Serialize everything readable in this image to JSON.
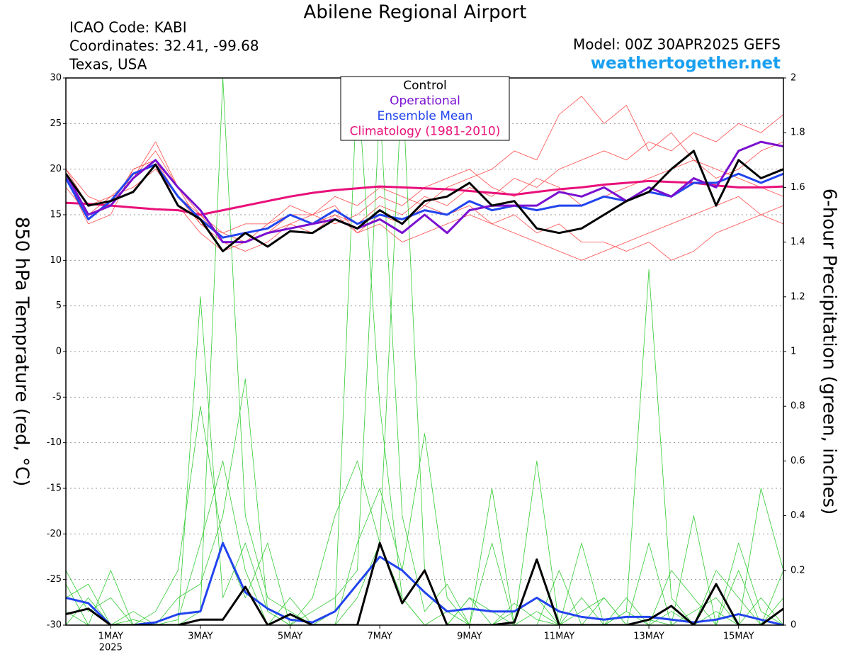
{
  "chart_data": {
    "type": "line",
    "title": "Abilene Regional Airport",
    "info": [
      "ICAO Code: KABI",
      "Coordinates: 32.41, -99.68",
      "Texas, USA"
    ],
    "model": "Model: 00Z 30APR2025 GEFS",
    "source": "weathertogether.net",
    "ylabel": "850 hPa Temprature (red, °C)",
    "y2label": "6-hour Precipitation (green, inches)",
    "x_sublabel": "2025",
    "xlim": [
      0,
      16
    ],
    "xticks": [
      {
        "value": 1,
        "label": "1MAY"
      },
      {
        "value": 3,
        "label": "3MAY"
      },
      {
        "value": 5,
        "label": "5MAY"
      },
      {
        "value": 7,
        "label": "7MAY"
      },
      {
        "value": 9,
        "label": "9MAY"
      },
      {
        "value": 11,
        "label": "11MAY"
      },
      {
        "value": 13,
        "label": "13MAY"
      },
      {
        "value": 15,
        "label": "15MAY"
      }
    ],
    "ylim": [
      -30,
      30
    ],
    "yticks": [
      -30,
      -25,
      -20,
      -15,
      -10,
      -5,
      0,
      5,
      10,
      15,
      20,
      25,
      30
    ],
    "y2lim": [
      0,
      2
    ],
    "y2ticks": [
      0,
      0.2,
      0.4,
      0.6,
      0.8,
      1,
      1.2,
      1.4,
      1.6,
      1.8,
      2
    ],
    "grid": true,
    "x": [
      0,
      0.5,
      1,
      1.5,
      2,
      2.5,
      3,
      3.5,
      4,
      4.5,
      5,
      5.5,
      6,
      6.5,
      7,
      7.5,
      8,
      8.5,
      9,
      9.5,
      10,
      10.5,
      11,
      11.5,
      12,
      12.5,
      13,
      13.5,
      14,
      14.5,
      15,
      15.5,
      16
    ],
    "series": [
      {
        "color": "#ff4a4a",
        "values": [
          20,
          16,
          17,
          19,
          22,
          18,
          14,
          12,
          11,
          12,
          14,
          13,
          15,
          14,
          16,
          15,
          17,
          16,
          18,
          17,
          19,
          18,
          20,
          21,
          22,
          21,
          23,
          22,
          24,
          23,
          25,
          24,
          26
        ]
      },
      {
        "color": "#ff4a4a",
        "values": [
          19,
          15,
          16,
          20,
          21,
          16,
          13,
          11,
          12,
          13,
          14,
          15,
          16,
          13,
          14,
          12,
          13,
          14,
          15,
          14,
          13,
          12,
          11,
          10,
          11,
          12,
          13,
          14,
          15,
          16,
          17,
          15,
          16
        ]
      },
      {
        "color": "#ff4a4a",
        "values": [
          18,
          15,
          17,
          18,
          20,
          17,
          15,
          13,
          14,
          14,
          16,
          15,
          14,
          15,
          17,
          16,
          18,
          19,
          20,
          18,
          17,
          19,
          18,
          16,
          17,
          18,
          19,
          20,
          21,
          19,
          20,
          22,
          23
        ]
      },
      {
        "color": "#ff4a4a",
        "values": [
          20,
          17,
          16,
          19,
          23,
          18,
          15,
          12,
          12,
          14,
          15,
          14,
          15,
          13,
          15,
          14,
          16,
          15,
          16,
          14,
          15,
          13,
          14,
          12,
          12,
          11,
          12,
          10,
          11,
          13,
          14,
          15,
          14
        ]
      },
      {
        "color": "#ff4a4a",
        "values": [
          19,
          14,
          15,
          20,
          21,
          17,
          14,
          13,
          12,
          13,
          15,
          15,
          17,
          16,
          18,
          17,
          16,
          18,
          19,
          20,
          22,
          21,
          26,
          28,
          25,
          27,
          22,
          24,
          21,
          20,
          19,
          18,
          17
        ]
      },
      {
        "color": "#33cc33",
        "axis": "y2",
        "values": [
          0.2,
          0.05,
          0.1,
          0,
          0,
          0,
          0.05,
          2.0,
          0.4,
          0.1,
          0.05,
          0,
          0,
          0.1,
          0.3,
          0.1,
          0,
          0.05,
          0,
          0,
          0.08,
          0.02,
          0,
          0.05,
          0.1,
          0,
          0.3,
          0,
          0.05,
          0.1,
          0,
          0.5,
          0.2
        ]
      },
      {
        "color": "#33cc33",
        "axis": "y2",
        "values": [
          0.1,
          0.15,
          0,
          0.05,
          0,
          0.02,
          0.3,
          0.6,
          0.2,
          0,
          0.1,
          0,
          0.05,
          2.0,
          0.8,
          0.1,
          0,
          0,
          0.1,
          0.05,
          0,
          0,
          0.2,
          0,
          0,
          0.05,
          1.3,
          0.1,
          0,
          0.05,
          0,
          0.1,
          0
        ]
      },
      {
        "color": "#33cc33",
        "axis": "y2",
        "values": [
          0.05,
          0,
          0.2,
          0,
          0,
          0.1,
          0.15,
          0.4,
          0.9,
          0.05,
          0,
          0.05,
          0.1,
          0.2,
          1.9,
          0.4,
          0.05,
          0.15,
          0,
          0.3,
          0,
          0.6,
          0,
          0,
          0.1,
          0,
          0.02,
          0,
          0.4,
          0,
          0.2,
          0,
          0.1
        ]
      },
      {
        "color": "#33cc33",
        "axis": "y2",
        "values": [
          0,
          0.1,
          0,
          0,
          0.05,
          0.2,
          0.8,
          0.3,
          0.1,
          0.3,
          0,
          0.1,
          0.4,
          0.6,
          0.3,
          2.0,
          0.2,
          0,
          0.1,
          0,
          0.05,
          0.1,
          0,
          0.3,
          0,
          0.1,
          0,
          0.05,
          0,
          0.2,
          0.1,
          0,
          0.2
        ]
      },
      {
        "color": "#33cc33",
        "axis": "y2",
        "values": [
          0.15,
          0,
          0,
          0.02,
          0,
          0,
          1.2,
          0.1,
          0.3,
          0.05,
          0,
          0,
          0,
          0.3,
          0.5,
          0.2,
          0.7,
          0.1,
          0,
          0.5,
          0,
          0.05,
          0,
          0.1,
          0,
          0.05,
          0,
          0.2,
          0.1,
          0,
          0.3,
          0.05,
          0
        ]
      },
      {
        "name": "Climatology (1981-2010)",
        "color": "#e8107a",
        "values": [
          16.3,
          16.2,
          16,
          15.8,
          15.6,
          15.5,
          15,
          15.5,
          16,
          16.5,
          17,
          17.4,
          17.7,
          17.9,
          18.1,
          18,
          17.9,
          17.8,
          17.6,
          17.4,
          17.2,
          17.5,
          17.8,
          18,
          18.3,
          18.5,
          18.7,
          18.6,
          18.5,
          18.2,
          18,
          18,
          18.1
        ]
      },
      {
        "name": "Ensemble Mean",
        "color": "#2244ee",
        "values": [
          19,
          14.5,
          16.5,
          19.5,
          20.5,
          17,
          14.5,
          12.5,
          13,
          13.5,
          15,
          14,
          15.5,
          14,
          15,
          14.5,
          15.5,
          15,
          16.5,
          15.5,
          16,
          15.5,
          16,
          16,
          17,
          16.5,
          17.5,
          17,
          18.5,
          18.5,
          19.5,
          18.5,
          19.5
        ]
      },
      {
        "name": "Operational",
        "color": "#7a10d0",
        "values": [
          19.5,
          15,
          16,
          19,
          21,
          18,
          15.5,
          12,
          12,
          13,
          13.5,
          14,
          14.5,
          13.5,
          14.5,
          13,
          15,
          13,
          15.5,
          16,
          16,
          16,
          17.5,
          17,
          18,
          16.5,
          18,
          17,
          19,
          18,
          22,
          23,
          22.5
        ]
      },
      {
        "name": "Control",
        "color": "#000000",
        "values": [
          19.5,
          16,
          16.5,
          17.5,
          20.5,
          16,
          14.5,
          11,
          13,
          11.5,
          13.2,
          13,
          14.5,
          13.5,
          15.5,
          14,
          16.5,
          17,
          18.5,
          16,
          16.5,
          13.5,
          13,
          13.5,
          15,
          16.5,
          17.5,
          20,
          22,
          16,
          21,
          19,
          20
        ]
      },
      {
        "color": "#2244ee",
        "axis": "y2",
        "values": [
          0.1,
          0.08,
          0,
          0,
          0.01,
          0.04,
          0.05,
          0.3,
          0.12,
          0.06,
          0.02,
          0.01,
          0.05,
          0.15,
          0.25,
          0.2,
          0.12,
          0.05,
          0.06,
          0.05,
          0.05,
          0.1,
          0.05,
          0.03,
          0.02,
          0.03,
          0.03,
          0.02,
          0.01,
          0.02,
          0.04,
          0.02,
          0
        ]
      },
      {
        "color": "#000000",
        "axis": "y2",
        "values": [
          0.04,
          0.06,
          0,
          0,
          0,
          0,
          0.02,
          0.02,
          0.14,
          0,
          0.04,
          0,
          0,
          0,
          0.3,
          0.08,
          0.2,
          0,
          0,
          0,
          0.01,
          0.24,
          0,
          0,
          0,
          0,
          0.02,
          0.07,
          0,
          0.15,
          0,
          0,
          0.06
        ]
      }
    ]
  }
}
